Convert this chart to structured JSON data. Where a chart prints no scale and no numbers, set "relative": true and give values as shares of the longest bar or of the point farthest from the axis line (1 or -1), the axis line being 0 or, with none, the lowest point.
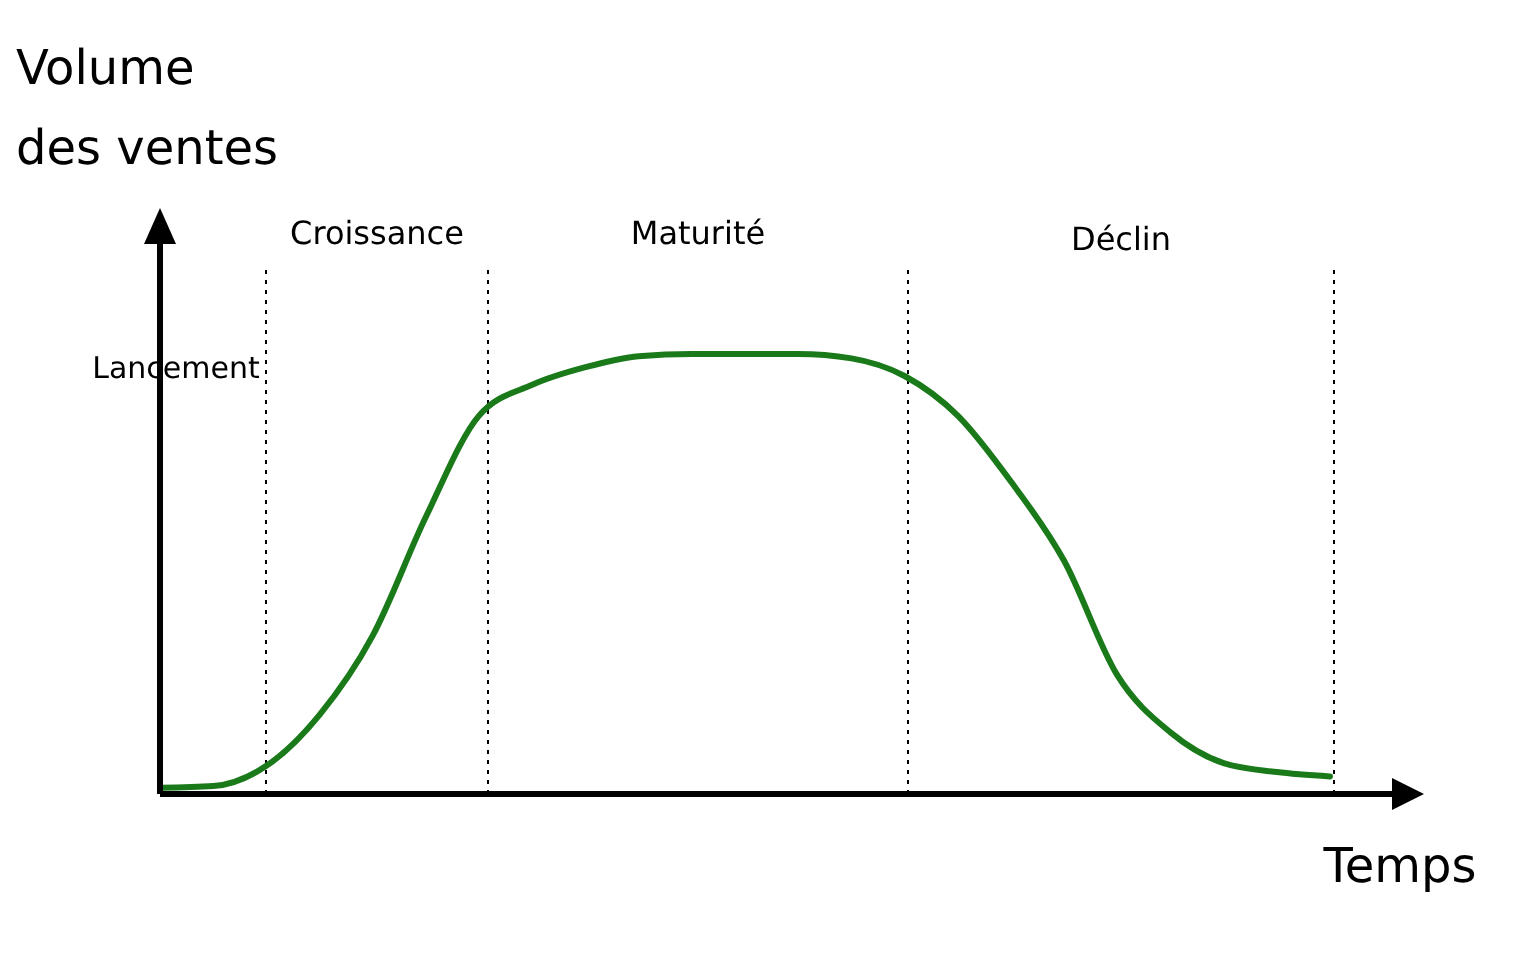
{
  "chart_data": {
    "type": "line",
    "relative": true,
    "xlabel": "Temps",
    "ylabel": "Volume des ventes",
    "categories": [
      null,
      null,
      null,
      null,
      null,
      null,
      null,
      null,
      null,
      null,
      null,
      null,
      null,
      null,
      null,
      null,
      null,
      null,
      null,
      null,
      null,
      null,
      null
    ],
    "series": [
      {
        "color": "#1a7a1a",
        "values": [
          0.014,
          0.018,
          0.064,
          0.18,
          0.36,
          0.63,
          0.86,
          0.93,
          0.97,
          0.995,
          1,
          1,
          1,
          0.99,
          0.95,
          0.86,
          0.71,
          0.53,
          0.27,
          0.14,
          0.07,
          0.05,
          0.04
        ]
      }
    ],
    "annotations": [
      "Lancement",
      "Croissance",
      "Maturité",
      "Déclin"
    ],
    "grid": "x",
    "marker": "none",
    "line_style": "solid"
  }
}
